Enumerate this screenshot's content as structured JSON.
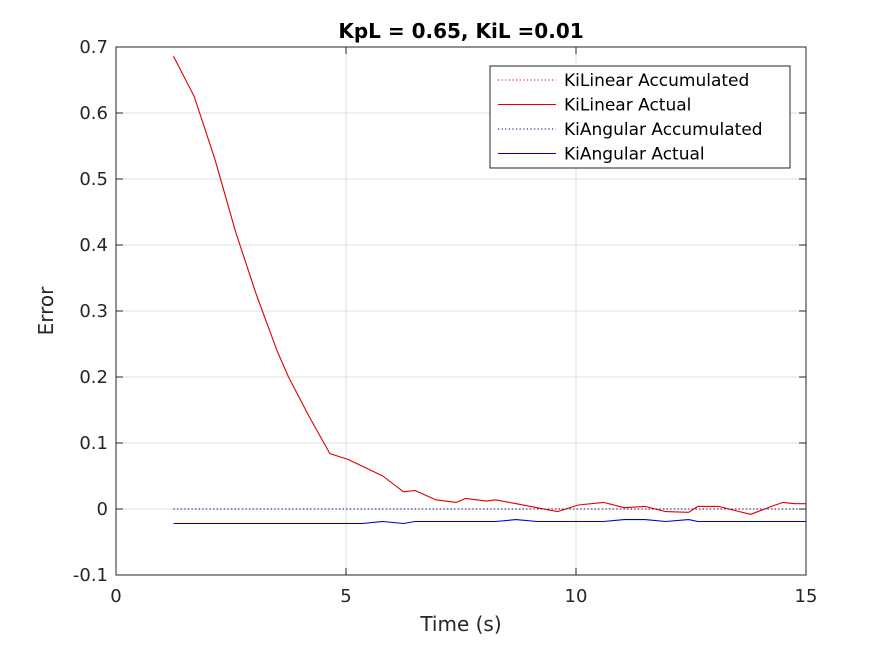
{
  "chart_data": {
    "type": "line",
    "title": "KpL = 0.65, KiL =0.01",
    "xlabel": "Time (s)",
    "ylabel": "Error",
    "xlim": [
      0,
      15
    ],
    "ylim": [
      -0.1,
      0.7
    ],
    "xticks": [
      0,
      5,
      10,
      15
    ],
    "xtick_labels": [
      "0",
      "5",
      "10",
      "15"
    ],
    "yticks": [
      -0.1,
      0,
      0.1,
      0.2,
      0.3,
      0.4,
      0.5,
      0.6,
      0.7
    ],
    "ytick_labels": [
      "-0.1",
      "0",
      "0.1",
      "0.2",
      "0.3",
      "0.4",
      "0.5",
      "0.6",
      "0.7"
    ],
    "grid": true,
    "legend_position": "top-right",
    "series": [
      {
        "name": "KiLinear Accumulated",
        "color": "#d00000",
        "style": "dotted",
        "x": [
          1.25,
          15.0
        ],
        "y": [
          0.0,
          0.0
        ]
      },
      {
        "name": "KiLinear Actual",
        "color": "#e00000",
        "style": "solid",
        "x": [
          1.25,
          1.7,
          2.15,
          2.6,
          3.05,
          3.5,
          3.75,
          4.2,
          4.65,
          5.05,
          5.35,
          5.8,
          6.25,
          6.5,
          6.95,
          7.4,
          7.6,
          8.05,
          8.25,
          8.7,
          9.15,
          9.6,
          10.05,
          10.6,
          11.05,
          11.5,
          11.95,
          12.45,
          12.65,
          13.1,
          13.55,
          13.8,
          14.25,
          14.5,
          14.75,
          15.0
        ],
        "y": [
          0.686,
          0.625,
          0.53,
          0.42,
          0.325,
          0.24,
          0.2,
          0.14,
          0.084,
          0.075,
          0.065,
          0.05,
          0.026,
          0.028,
          0.014,
          0.01,
          0.016,
          0.012,
          0.014,
          0.008,
          0.002,
          -0.004,
          0.006,
          0.01,
          0.002,
          0.004,
          -0.004,
          -0.005,
          0.004,
          0.004,
          -0.004,
          -0.008,
          0.004,
          0.01,
          0.008,
          0.008
        ]
      },
      {
        "name": "KiAngular Accumulated",
        "color": "#000080",
        "style": "dotted",
        "x": [
          1.25,
          15.0
        ],
        "y": [
          0.0,
          0.0
        ]
      },
      {
        "name": "KiAngular Actual",
        "color": "#0000d0",
        "style": "solid",
        "x": [
          1.25,
          5.35,
          5.8,
          6.25,
          6.5,
          8.25,
          8.7,
          9.15,
          10.6,
          11.05,
          11.5,
          11.95,
          12.45,
          12.65,
          15.0
        ],
        "y": [
          -0.022,
          -0.022,
          -0.019,
          -0.022,
          -0.019,
          -0.019,
          -0.016,
          -0.019,
          -0.019,
          -0.016,
          -0.016,
          -0.019,
          -0.016,
          -0.019,
          -0.019
        ]
      }
    ]
  }
}
